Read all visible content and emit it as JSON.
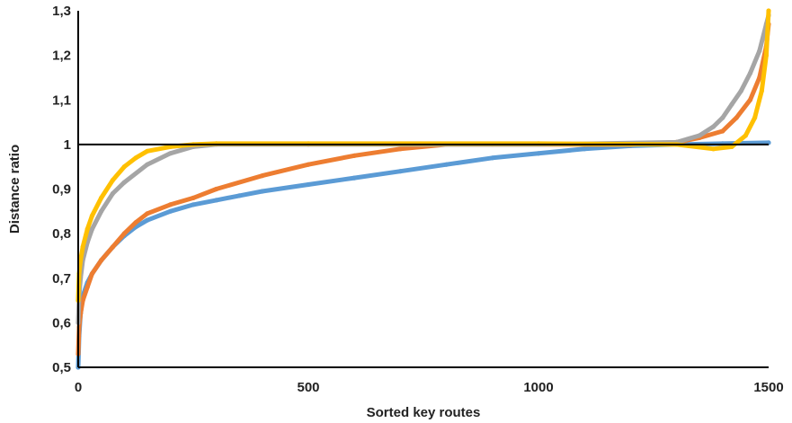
{
  "chart_data": {
    "type": "scatter",
    "xlabel": "Sorted key routes",
    "ylabel": "Distance ratio",
    "xlim": [
      0,
      1500
    ],
    "ylim": [
      0.5,
      1.3
    ],
    "x_ticks": [
      "0",
      "500",
      "1000",
      "1500"
    ],
    "y_ticks": [
      "0,5",
      "0,6",
      "0,7",
      "0,8",
      "0,9",
      "1",
      "1,1",
      "1,2",
      "1,3"
    ],
    "grid": false,
    "legend": "none",
    "reference_line": {
      "y": 1,
      "color": "#000000"
    },
    "series": [
      {
        "color": "#5B9BD5",
        "x": [
          0,
          2,
          5,
          10,
          20,
          30,
          50,
          75,
          100,
          125,
          150,
          200,
          250,
          300,
          350,
          400,
          500,
          600,
          700,
          800,
          900,
          1000,
          1100,
          1200,
          1300,
          1400,
          1500
        ],
        "y": [
          0.5,
          0.57,
          0.62,
          0.66,
          0.69,
          0.71,
          0.74,
          0.77,
          0.795,
          0.815,
          0.83,
          0.85,
          0.865,
          0.875,
          0.885,
          0.895,
          0.91,
          0.925,
          0.94,
          0.955,
          0.97,
          0.98,
          0.99,
          0.997,
          1.0,
          1.002,
          1.004
        ]
      },
      {
        "color": "#ED7D31",
        "x": [
          0,
          2,
          5,
          10,
          20,
          30,
          50,
          75,
          100,
          125,
          150,
          200,
          250,
          300,
          400,
          500,
          600,
          700,
          800,
          900,
          1000,
          1100,
          1200,
          1300,
          1350,
          1400,
          1430,
          1460,
          1480,
          1495,
          1500
        ],
        "y": [
          0.53,
          0.59,
          0.62,
          0.65,
          0.68,
          0.71,
          0.74,
          0.77,
          0.8,
          0.825,
          0.845,
          0.865,
          0.88,
          0.9,
          0.93,
          0.955,
          0.975,
          0.99,
          1.0,
          1.0,
          1.0,
          1.0,
          1.0,
          1.005,
          1.015,
          1.03,
          1.06,
          1.1,
          1.15,
          1.22,
          1.27
        ]
      },
      {
        "color": "#A5A5A5",
        "x": [
          0,
          2,
          5,
          10,
          20,
          30,
          50,
          75,
          100,
          150,
          200,
          250,
          300,
          500,
          1000,
          1300,
          1350,
          1380,
          1400,
          1420,
          1440,
          1460,
          1480,
          1495,
          1500
        ],
        "y": [
          0.6,
          0.66,
          0.7,
          0.74,
          0.78,
          0.81,
          0.85,
          0.89,
          0.915,
          0.955,
          0.98,
          0.995,
          1.0,
          1.0,
          1.0,
          1.005,
          1.02,
          1.04,
          1.06,
          1.09,
          1.12,
          1.16,
          1.21,
          1.27,
          1.29
        ]
      },
      {
        "color": "#FFC000",
        "x": [
          0,
          2,
          5,
          10,
          20,
          30,
          50,
          75,
          100,
          125,
          150,
          200,
          250,
          300,
          500,
          1000,
          1300,
          1380,
          1420,
          1450,
          1470,
          1485,
          1495,
          1500
        ],
        "y": [
          0.65,
          0.71,
          0.74,
          0.77,
          0.81,
          0.84,
          0.88,
          0.92,
          0.95,
          0.97,
          0.985,
          0.995,
          1.0,
          1.002,
          1.002,
          1.002,
          1.0,
          0.99,
          0.995,
          1.02,
          1.06,
          1.12,
          1.2,
          1.3
        ]
      }
    ]
  }
}
